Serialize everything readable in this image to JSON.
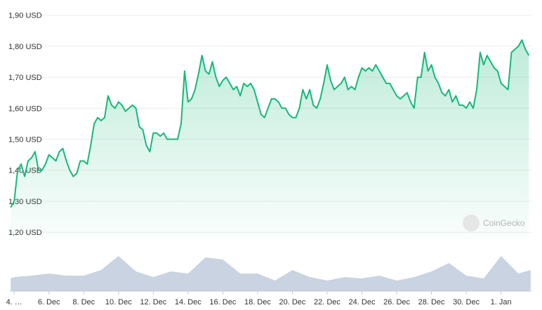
{
  "chart_data": {
    "type": "line",
    "watermark": "CoinGecko",
    "x": [
      -0.2,
      0,
      0.2,
      0.4,
      0.6,
      0.8,
      1,
      1.2,
      1.4,
      1.6,
      1.8,
      2,
      2.2,
      2.4,
      2.6,
      2.8,
      3,
      3.2,
      3.4,
      3.6,
      3.8,
      4,
      4.2,
      4.4,
      4.6,
      4.8,
      5,
      5.2,
      5.4,
      5.6,
      5.8,
      6,
      6.2,
      6.4,
      6.6,
      6.8,
      7,
      7.2,
      7.4,
      7.6,
      7.8,
      8,
      8.2,
      8.4,
      8.6,
      8.8,
      9,
      9.2,
      9.4,
      9.6,
      9.8,
      10,
      10.2,
      10.4,
      10.6,
      10.8,
      11,
      11.2,
      11.4,
      11.6,
      11.8,
      12,
      12.2,
      12.4,
      12.6,
      12.8,
      13,
      13.2,
      13.4,
      13.6,
      13.8,
      14,
      14.2,
      14.4,
      14.6,
      14.8,
      15,
      15.2,
      15.4,
      15.6,
      15.8,
      16,
      16.2,
      16.4,
      16.6,
      16.8,
      17,
      17.2,
      17.4,
      17.6,
      17.8,
      18,
      18.2,
      18.4,
      18.6,
      18.8,
      19,
      19.2,
      19.4,
      19.6,
      19.8,
      20,
      20.2,
      20.4,
      20.6,
      20.8,
      21,
      21.2,
      21.4,
      21.6,
      21.8,
      22,
      22.2,
      22.4,
      22.6,
      22.8,
      23,
      23.2,
      23.4,
      23.6,
      23.8,
      24,
      24.2,
      24.4,
      24.6,
      24.8,
      25,
      25.2,
      25.4,
      25.6,
      25.8,
      26,
      26.2,
      26.4,
      26.6,
      26.8,
      27,
      27.2,
      27.4,
      27.6,
      27.8,
      28,
      28.2,
      28.4,
      28.6,
      28.8,
      29,
      29.2,
      29.4,
      29.6
    ],
    "series": [
      {
        "color": "#16b979",
        "values": [
          1.28,
          1.3,
          1.4,
          1.42,
          1.38,
          1.43,
          1.44,
          1.46,
          1.4,
          1.4,
          1.42,
          1.45,
          1.44,
          1.43,
          1.46,
          1.47,
          1.43,
          1.4,
          1.38,
          1.39,
          1.43,
          1.43,
          1.42,
          1.48,
          1.55,
          1.57,
          1.56,
          1.57,
          1.64,
          1.61,
          1.6,
          1.62,
          1.61,
          1.59,
          1.6,
          1.61,
          1.6,
          1.54,
          1.53,
          1.48,
          1.46,
          1.52,
          1.52,
          1.51,
          1.52,
          1.5,
          1.5,
          1.5,
          1.5,
          1.55,
          1.72,
          1.62,
          1.63,
          1.66,
          1.71,
          1.77,
          1.72,
          1.71,
          1.75,
          1.7,
          1.67,
          1.69,
          1.7,
          1.68,
          1.66,
          1.67,
          1.64,
          1.68,
          1.67,
          1.68,
          1.66,
          1.62,
          1.58,
          1.57,
          1.6,
          1.63,
          1.63,
          1.62,
          1.6,
          1.6,
          1.58,
          1.57,
          1.57,
          1.6,
          1.66,
          1.63,
          1.66,
          1.61,
          1.6,
          1.63,
          1.68,
          1.74,
          1.69,
          1.66,
          1.67,
          1.68,
          1.7,
          1.66,
          1.67,
          1.66,
          1.7,
          1.73,
          1.72,
          1.73,
          1.72,
          1.74,
          1.72,
          1.7,
          1.68,
          1.68,
          1.66,
          1.64,
          1.63,
          1.64,
          1.65,
          1.62,
          1.6,
          1.7,
          1.7,
          1.78,
          1.72,
          1.74,
          1.7,
          1.68,
          1.65,
          1.64,
          1.66,
          1.62,
          1.64,
          1.61,
          1.61,
          1.6,
          1.62,
          1.6,
          1.66,
          1.78,
          1.74,
          1.77,
          1.75,
          1.73,
          1.72,
          1.68,
          1.67,
          1.66,
          1.78,
          1.79,
          1.8,
          1.82,
          1.79,
          1.77
        ]
      }
    ],
    "volume": {
      "color": "#c9d3e2",
      "x": [
        -0.2,
        0,
        1,
        2,
        3,
        4,
        5,
        6,
        7,
        8,
        9,
        10,
        11,
        12,
        13,
        14,
        15,
        16,
        17,
        18,
        19,
        20,
        21,
        22,
        23,
        24,
        25,
        26,
        27,
        28,
        29,
        29.7
      ],
      "values": [
        18,
        20,
        22,
        25,
        22,
        22,
        30,
        50,
        28,
        20,
        28,
        25,
        48,
        45,
        25,
        25,
        15,
        30,
        20,
        15,
        20,
        18,
        22,
        15,
        20,
        28,
        40,
        22,
        18,
        50,
        25,
        30
      ],
      "ylim": [
        0,
        70
      ]
    },
    "xlim": [
      -0.25,
      29.75
    ],
    "xticks": [
      {
        "value": 0,
        "label": "4. …"
      },
      {
        "value": 2,
        "label": "6. Dec"
      },
      {
        "value": 4,
        "label": "8. Dec"
      },
      {
        "value": 6,
        "label": "10. Dec"
      },
      {
        "value": 8,
        "label": "12. Dec"
      },
      {
        "value": 10,
        "label": "14. Dec"
      },
      {
        "value": 12,
        "label": "16. Dec"
      },
      {
        "value": 14,
        "label": "18. Dec"
      },
      {
        "value": 16,
        "label": "20. Dec"
      },
      {
        "value": 18,
        "label": "22. Dec"
      },
      {
        "value": 20,
        "label": "24. Dec"
      },
      {
        "value": 22,
        "label": "26. Dec"
      },
      {
        "value": 24,
        "label": "28. Dec"
      },
      {
        "value": 26,
        "label": "30. Dec"
      },
      {
        "value": 28,
        "label": "1. Jan"
      }
    ],
    "ylim": [
      1.18,
      1.915
    ],
    "yticks": [
      {
        "value": 1.2,
        "label": "1,20 USD"
      },
      {
        "value": 1.3,
        "label": "1,30 USD"
      },
      {
        "value": 1.4,
        "label": "1,40 USD"
      },
      {
        "value": 1.5,
        "label": "1,50 USD"
      },
      {
        "value": 1.6,
        "label": "1,60 USD"
      },
      {
        "value": 1.7,
        "label": "1,70 USD"
      },
      {
        "value": 1.8,
        "label": "1,80 USD"
      },
      {
        "value": 1.9,
        "label": "1,90 USD"
      }
    ],
    "grid": true
  }
}
